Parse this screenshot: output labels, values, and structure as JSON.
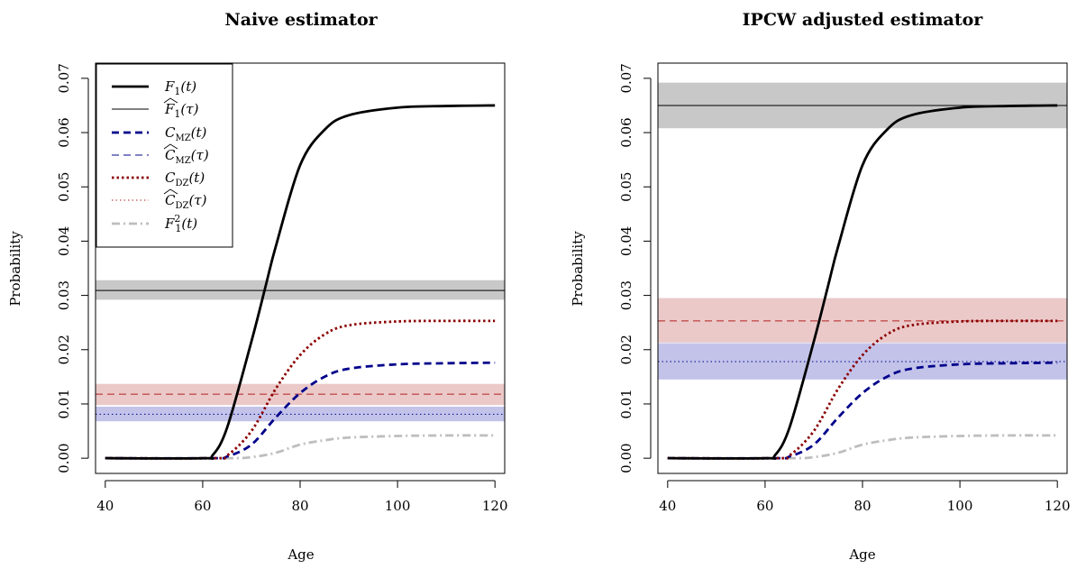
{
  "chart_data": [
    {
      "type": "line",
      "title": "Naive estimator",
      "xlabel": "Age",
      "ylabel": "Probability",
      "xlim": [
        40,
        120
      ],
      "ylim": [
        0,
        0.07
      ],
      "xticks": [
        "40",
        "60",
        "80",
        "100",
        "120"
      ],
      "yticks": [
        "0.00",
        "0.01",
        "0.02",
        "0.03",
        "0.04",
        "0.05",
        "0.06",
        "0.07"
      ],
      "legend_position": "top-left",
      "series": [
        {
          "name": "F1(t)",
          "style": "solid-thick",
          "color": "#000000",
          "x": [
            40,
            60,
            62,
            65,
            70,
            73,
            75,
            80,
            85,
            90,
            100,
            110,
            120
          ],
          "values": [
            0,
            0,
            0.0005,
            0.0056,
            0.0215,
            0.032,
            0.039,
            0.054,
            0.0605,
            0.0632,
            0.0646,
            0.0649,
            0.065
          ]
        },
        {
          "name": "C_MZ(t)",
          "style": "dashed-thick",
          "color": "#00008b",
          "x": [
            40,
            62,
            65,
            70,
            75,
            80,
            85,
            90,
            100,
            110,
            120
          ],
          "values": [
            0,
            0,
            0.0003,
            0.0025,
            0.0075,
            0.012,
            0.015,
            0.0165,
            0.0173,
            0.0175,
            0.0176
          ]
        },
        {
          "name": "C_DZ(t)",
          "style": "dotted-thick",
          "color": "#8b0000",
          "x": [
            40,
            62,
            65,
            70,
            75,
            80,
            85,
            90,
            100,
            110,
            120
          ],
          "values": [
            0,
            0,
            0.0005,
            0.005,
            0.0128,
            0.019,
            0.0228,
            0.0245,
            0.0252,
            0.0253,
            0.0253
          ]
        },
        {
          "name": "F1^2(t)",
          "style": "dashdot-thick",
          "color": "#bebebe",
          "x": [
            40,
            65,
            70,
            75,
            80,
            85,
            90,
            100,
            110,
            120
          ],
          "values": [
            0,
            0,
            0.0002,
            0.001,
            0.0025,
            0.0033,
            0.0038,
            0.0041,
            0.0042,
            0.0042
          ]
        }
      ],
      "estimates": [
        {
          "name": "F1(tau)",
          "value": 0.0309,
          "ci": [
            0.0292,
            0.0328
          ],
          "line": "solid-thin",
          "color": "#000000",
          "band": "#bebebe"
        },
        {
          "name": "C_MZ(tau)",
          "value": 0.0081,
          "ci": [
            0.0068,
            0.0095
          ],
          "line": "dotted-thin",
          "color": "#00008b",
          "band": "#b9b9e6"
        },
        {
          "name": "C_DZ(tau)",
          "value": 0.0118,
          "ci": [
            0.0098,
            0.0137
          ],
          "line": "dashed-thin",
          "color": "#b22222",
          "band": "#e8c0c0"
        }
      ]
    },
    {
      "type": "line",
      "title": "IPCW adjusted estimator",
      "xlabel": "Age",
      "ylabel": "Probability",
      "xlim": [
        40,
        120
      ],
      "ylim": [
        0,
        0.07
      ],
      "xticks": [
        "40",
        "60",
        "80",
        "100",
        "120"
      ],
      "yticks": [
        "0.00",
        "0.01",
        "0.02",
        "0.03",
        "0.04",
        "0.05",
        "0.06",
        "0.07"
      ],
      "series": [
        {
          "name": "F1(t)",
          "style": "solid-thick",
          "color": "#000000",
          "x": [
            40,
            60,
            62,
            65,
            70,
            73,
            75,
            80,
            85,
            90,
            100,
            110,
            120
          ],
          "values": [
            0,
            0,
            0.0005,
            0.0056,
            0.0215,
            0.032,
            0.039,
            0.054,
            0.0605,
            0.0632,
            0.0646,
            0.0649,
            0.065
          ]
        },
        {
          "name": "C_MZ(t)",
          "style": "dashed-thick",
          "color": "#00008b",
          "x": [
            40,
            62,
            65,
            70,
            75,
            80,
            85,
            90,
            100,
            110,
            120
          ],
          "values": [
            0,
            0,
            0.0003,
            0.0025,
            0.0075,
            0.012,
            0.015,
            0.0165,
            0.0173,
            0.0175,
            0.0176
          ]
        },
        {
          "name": "C_DZ(t)",
          "style": "dotted-thick",
          "color": "#8b0000",
          "x": [
            40,
            62,
            65,
            70,
            75,
            80,
            85,
            90,
            100,
            110,
            120
          ],
          "values": [
            0,
            0,
            0.0005,
            0.005,
            0.0128,
            0.019,
            0.0228,
            0.0245,
            0.0252,
            0.0253,
            0.0253
          ]
        },
        {
          "name": "F1^2(t)",
          "style": "dashdot-thick",
          "color": "#bebebe",
          "x": [
            40,
            65,
            70,
            75,
            80,
            85,
            90,
            100,
            110,
            120
          ],
          "values": [
            0,
            0,
            0.0002,
            0.001,
            0.0025,
            0.0033,
            0.0038,
            0.0041,
            0.0042,
            0.0042
          ]
        }
      ],
      "estimates": [
        {
          "name": "F1(tau)",
          "value": 0.065,
          "ci": [
            0.0608,
            0.0692
          ],
          "line": "solid-thin",
          "color": "#000000",
          "band": "#bebebe"
        },
        {
          "name": "C_MZ(tau)",
          "value": 0.0178,
          "ci": [
            0.0145,
            0.0212
          ],
          "line": "dotted-thin",
          "color": "#00008b",
          "band": "#b9b9e6"
        },
        {
          "name": "C_DZ(tau)",
          "value": 0.0253,
          "ci": [
            0.0213,
            0.0295
          ],
          "line": "dashed-thin",
          "color": "#b22222",
          "band": "#e8c0c0"
        }
      ]
    }
  ]
}
